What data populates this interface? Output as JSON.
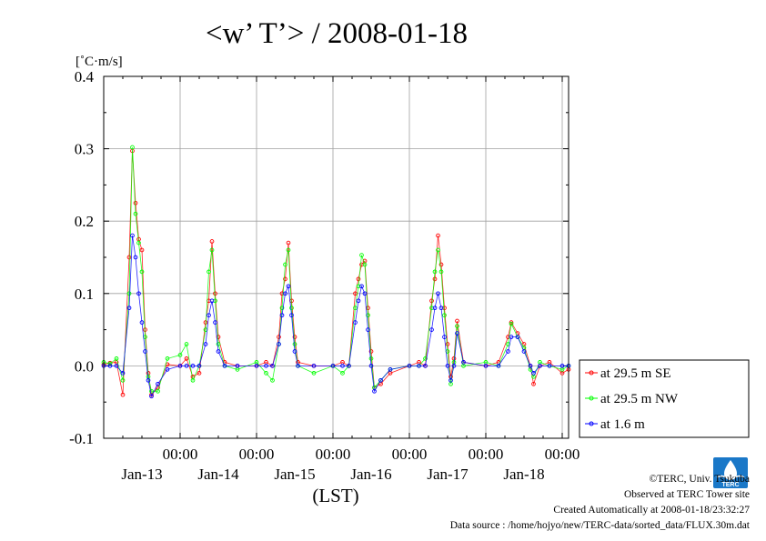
{
  "chart_data": {
    "type": "line",
    "title": "<w’ T’> / 2008-01-18",
    "ylabel": "[˚C·m/s]",
    "xlabel": "(LST)",
    "ylim": [
      -0.1,
      0.4
    ],
    "y_ticks": [
      "0.4",
      "0.3",
      "0.2",
      "0.1",
      "0.0",
      "-0.1"
    ],
    "x_ticks": [
      {
        "time": "00:00",
        "date": "Jan-13"
      },
      {
        "time": "00:00",
        "date": "Jan-14"
      },
      {
        "time": "00:00",
        "date": "Jan-15"
      },
      {
        "time": "00:00",
        "date": "Jan-16"
      },
      {
        "time": "00:00",
        "date": "Jan-17"
      },
      {
        "time": "00:00",
        "date": "Jan-18"
      }
    ],
    "xlim": [
      "2008-01-12 00:00",
      "2008-01-18 02:00"
    ],
    "grid": true,
    "legend_position": "right",
    "series": [
      {
        "name": "at 29.5 m SE",
        "color": "#ff0000",
        "points": [
          [
            "2008-01-12 00:00",
            0.002
          ],
          [
            "2008-01-12 02:00",
            0.004
          ],
          [
            "2008-01-12 04:00",
            0.005
          ],
          [
            "2008-01-12 06:00",
            -0.04
          ],
          [
            "2008-01-12 08:00",
            0.15
          ],
          [
            "2008-01-12 09:00",
            0.297
          ],
          [
            "2008-01-12 10:00",
            0.225
          ],
          [
            "2008-01-12 11:00",
            0.175
          ],
          [
            "2008-01-12 12:00",
            0.16
          ],
          [
            "2008-01-12 13:00",
            0.05
          ],
          [
            "2008-01-12 14:00",
            -0.01
          ],
          [
            "2008-01-12 15:00",
            -0.04
          ],
          [
            "2008-01-12 17:00",
            -0.03
          ],
          [
            "2008-01-12 20:00",
            0.002
          ],
          [
            "2008-01-13 00:00",
            0.0
          ],
          [
            "2008-01-13 02:00",
            0.01
          ],
          [
            "2008-01-13 04:00",
            -0.015
          ],
          [
            "2008-01-13 06:00",
            -0.01
          ],
          [
            "2008-01-13 08:00",
            0.06
          ],
          [
            "2008-01-13 09:00",
            0.09
          ],
          [
            "2008-01-13 10:00",
            0.172
          ],
          [
            "2008-01-13 11:00",
            0.1
          ],
          [
            "2008-01-13 12:00",
            0.04
          ],
          [
            "2008-01-13 14:00",
            0.005
          ],
          [
            "2008-01-13 18:00",
            0.0
          ],
          [
            "2008-01-14 00:00",
            0.0
          ],
          [
            "2008-01-14 03:00",
            0.005
          ],
          [
            "2008-01-14 05:00",
            0.0
          ],
          [
            "2008-01-14 07:00",
            0.04
          ],
          [
            "2008-01-14 08:00",
            0.1
          ],
          [
            "2008-01-14 09:00",
            0.12
          ],
          [
            "2008-01-14 10:00",
            0.17
          ],
          [
            "2008-01-14 11:00",
            0.09
          ],
          [
            "2008-01-14 12:00",
            0.04
          ],
          [
            "2008-01-14 13:00",
            0.005
          ],
          [
            "2008-01-14 18:00",
            0.0
          ],
          [
            "2008-01-15 00:00",
            0.0
          ],
          [
            "2008-01-15 03:00",
            0.005
          ],
          [
            "2008-01-15 05:00",
            0.0
          ],
          [
            "2008-01-15 07:00",
            0.1
          ],
          [
            "2008-01-15 08:00",
            0.12
          ],
          [
            "2008-01-15 09:00",
            0.14
          ],
          [
            "2008-01-15 10:00",
            0.145
          ],
          [
            "2008-01-15 11:00",
            0.08
          ],
          [
            "2008-01-15 12:00",
            0.02
          ],
          [
            "2008-01-15 13:00",
            -0.03
          ],
          [
            "2008-01-15 15:00",
            -0.025
          ],
          [
            "2008-01-15 18:00",
            -0.01
          ],
          [
            "2008-01-16 00:00",
            0.0
          ],
          [
            "2008-01-16 03:00",
            0.005
          ],
          [
            "2008-01-16 05:00",
            0.0
          ],
          [
            "2008-01-16 07:00",
            0.09
          ],
          [
            "2008-01-16 08:00",
            0.12
          ],
          [
            "2008-01-16 09:00",
            0.18
          ],
          [
            "2008-01-16 10:00",
            0.14
          ],
          [
            "2008-01-16 11:00",
            0.08
          ],
          [
            "2008-01-16 12:00",
            0.03
          ],
          [
            "2008-01-16 13:00",
            -0.015
          ],
          [
            "2008-01-16 14:00",
            0.01
          ],
          [
            "2008-01-16 15:00",
            0.062
          ],
          [
            "2008-01-16 17:00",
            0.005
          ],
          [
            "2008-01-17 00:00",
            0.0
          ],
          [
            "2008-01-17 04:00",
            0.005
          ],
          [
            "2008-01-17 07:00",
            0.04
          ],
          [
            "2008-01-17 08:00",
            0.06
          ],
          [
            "2008-01-17 10:00",
            0.045
          ],
          [
            "2008-01-17 12:00",
            0.03
          ],
          [
            "2008-01-17 14:00",
            0.0
          ],
          [
            "2008-01-17 15:00",
            -0.025
          ],
          [
            "2008-01-17 17:00",
            0.0
          ],
          [
            "2008-01-17 20:00",
            0.005
          ],
          [
            "2008-01-18 00:00",
            -0.01
          ],
          [
            "2008-01-18 02:00",
            -0.005
          ]
        ]
      },
      {
        "name": "at 29.5 m NW",
        "color": "#00ff00",
        "points": [
          [
            "2008-01-12 00:00",
            0.005
          ],
          [
            "2008-01-12 02:00",
            0.003
          ],
          [
            "2008-01-12 04:00",
            0.01
          ],
          [
            "2008-01-12 06:00",
            -0.02
          ],
          [
            "2008-01-12 08:00",
            0.1
          ],
          [
            "2008-01-12 09:00",
            0.302
          ],
          [
            "2008-01-12 10:00",
            0.21
          ],
          [
            "2008-01-12 11:00",
            0.17
          ],
          [
            "2008-01-12 12:00",
            0.13
          ],
          [
            "2008-01-12 13:00",
            0.04
          ],
          [
            "2008-01-12 14:00",
            -0.015
          ],
          [
            "2008-01-12 15:00",
            -0.035
          ],
          [
            "2008-01-12 17:00",
            -0.035
          ],
          [
            "2008-01-12 20:00",
            0.01
          ],
          [
            "2008-01-13 00:00",
            0.015
          ],
          [
            "2008-01-13 02:00",
            0.03
          ],
          [
            "2008-01-13 04:00",
            -0.02
          ],
          [
            "2008-01-13 06:00",
            0.0
          ],
          [
            "2008-01-13 08:00",
            0.05
          ],
          [
            "2008-01-13 09:00",
            0.13
          ],
          [
            "2008-01-13 10:00",
            0.16
          ],
          [
            "2008-01-13 11:00",
            0.09
          ],
          [
            "2008-01-13 12:00",
            0.03
          ],
          [
            "2008-01-13 14:00",
            0.0
          ],
          [
            "2008-01-13 18:00",
            -0.005
          ],
          [
            "2008-01-14 00:00",
            0.005
          ],
          [
            "2008-01-14 03:00",
            -0.01
          ],
          [
            "2008-01-14 05:00",
            -0.02
          ],
          [
            "2008-01-14 07:00",
            0.03
          ],
          [
            "2008-01-14 08:00",
            0.08
          ],
          [
            "2008-01-14 09:00",
            0.14
          ],
          [
            "2008-01-14 10:00",
            0.16
          ],
          [
            "2008-01-14 11:00",
            0.08
          ],
          [
            "2008-01-14 12:00",
            0.03
          ],
          [
            "2008-01-14 13:00",
            0.0
          ],
          [
            "2008-01-14 18:00",
            -0.01
          ],
          [
            "2008-01-15 00:00",
            0.0
          ],
          [
            "2008-01-15 03:00",
            -0.01
          ],
          [
            "2008-01-15 05:00",
            0.0
          ],
          [
            "2008-01-15 07:00",
            0.08
          ],
          [
            "2008-01-15 08:00",
            0.11
          ],
          [
            "2008-01-15 09:00",
            0.153
          ],
          [
            "2008-01-15 10:00",
            0.14
          ],
          [
            "2008-01-15 11:00",
            0.07
          ],
          [
            "2008-01-15 12:00",
            0.01
          ],
          [
            "2008-01-15 13:00",
            -0.03
          ],
          [
            "2008-01-15 15:00",
            -0.02
          ],
          [
            "2008-01-15 18:00",
            -0.005
          ],
          [
            "2008-01-16 00:00",
            0.0
          ],
          [
            "2008-01-16 03:00",
            0.0
          ],
          [
            "2008-01-16 05:00",
            0.01
          ],
          [
            "2008-01-16 07:00",
            0.08
          ],
          [
            "2008-01-16 08:00",
            0.13
          ],
          [
            "2008-01-16 09:00",
            0.16
          ],
          [
            "2008-01-16 10:00",
            0.13
          ],
          [
            "2008-01-16 11:00",
            0.07
          ],
          [
            "2008-01-16 12:00",
            0.02
          ],
          [
            "2008-01-16 13:00",
            -0.025
          ],
          [
            "2008-01-16 14:00",
            0.005
          ],
          [
            "2008-01-16 15:00",
            0.055
          ],
          [
            "2008-01-16 17:00",
            0.0
          ],
          [
            "2008-01-17 00:00",
            0.005
          ],
          [
            "2008-01-17 04:00",
            0.0
          ],
          [
            "2008-01-17 07:00",
            0.03
          ],
          [
            "2008-01-17 08:00",
            0.058
          ],
          [
            "2008-01-17 10:00",
            0.04
          ],
          [
            "2008-01-17 12:00",
            0.025
          ],
          [
            "2008-01-17 14:00",
            -0.005
          ],
          [
            "2008-01-17 15:00",
            -0.015
          ],
          [
            "2008-01-17 17:00",
            0.005
          ],
          [
            "2008-01-17 20:00",
            0.0
          ],
          [
            "2008-01-18 00:00",
            -0.005
          ],
          [
            "2008-01-18 02:00",
            0.0
          ]
        ]
      },
      {
        "name": "at 1.6 m",
        "color": "#0000ff",
        "points": [
          [
            "2008-01-12 00:00",
            0.0
          ],
          [
            "2008-01-12 02:00",
            0.0
          ],
          [
            "2008-01-12 04:00",
            0.0
          ],
          [
            "2008-01-12 06:00",
            -0.01
          ],
          [
            "2008-01-12 08:00",
            0.08
          ],
          [
            "2008-01-12 09:00",
            0.18
          ],
          [
            "2008-01-12 10:00",
            0.15
          ],
          [
            "2008-01-12 11:00",
            0.1
          ],
          [
            "2008-01-12 12:00",
            0.06
          ],
          [
            "2008-01-12 13:00",
            0.02
          ],
          [
            "2008-01-12 14:00",
            -0.02
          ],
          [
            "2008-01-12 15:00",
            -0.042
          ],
          [
            "2008-01-12 17:00",
            -0.025
          ],
          [
            "2008-01-12 20:00",
            -0.005
          ],
          [
            "2008-01-13 00:00",
            0.0
          ],
          [
            "2008-01-13 02:00",
            0.0
          ],
          [
            "2008-01-13 04:00",
            0.0
          ],
          [
            "2008-01-13 06:00",
            0.0
          ],
          [
            "2008-01-13 08:00",
            0.03
          ],
          [
            "2008-01-13 09:00",
            0.07
          ],
          [
            "2008-01-13 10:00",
            0.09
          ],
          [
            "2008-01-13 11:00",
            0.06
          ],
          [
            "2008-01-13 12:00",
            0.02
          ],
          [
            "2008-01-13 14:00",
            0.0
          ],
          [
            "2008-01-13 18:00",
            0.0
          ],
          [
            "2008-01-14 00:00",
            0.0
          ],
          [
            "2008-01-14 03:00",
            0.0
          ],
          [
            "2008-01-14 05:00",
            0.0
          ],
          [
            "2008-01-14 07:00",
            0.03
          ],
          [
            "2008-01-14 08:00",
            0.07
          ],
          [
            "2008-01-14 09:00",
            0.1
          ],
          [
            "2008-01-14 10:00",
            0.11
          ],
          [
            "2008-01-14 11:00",
            0.07
          ],
          [
            "2008-01-14 12:00",
            0.02
          ],
          [
            "2008-01-14 13:00",
            0.0
          ],
          [
            "2008-01-14 18:00",
            0.0
          ],
          [
            "2008-01-15 00:00",
            0.0
          ],
          [
            "2008-01-15 03:00",
            0.0
          ],
          [
            "2008-01-15 05:00",
            0.0
          ],
          [
            "2008-01-15 07:00",
            0.06
          ],
          [
            "2008-01-15 08:00",
            0.09
          ],
          [
            "2008-01-15 09:00",
            0.11
          ],
          [
            "2008-01-15 10:00",
            0.1
          ],
          [
            "2008-01-15 11:00",
            0.05
          ],
          [
            "2008-01-15 12:00",
            0.0
          ],
          [
            "2008-01-15 13:00",
            -0.035
          ],
          [
            "2008-01-15 15:00",
            -0.02
          ],
          [
            "2008-01-15 18:00",
            -0.005
          ],
          [
            "2008-01-16 00:00",
            0.0
          ],
          [
            "2008-01-16 03:00",
            0.0
          ],
          [
            "2008-01-16 05:00",
            0.0
          ],
          [
            "2008-01-16 07:00",
            0.05
          ],
          [
            "2008-01-16 08:00",
            0.08
          ],
          [
            "2008-01-16 09:00",
            0.1
          ],
          [
            "2008-01-16 10:00",
            0.08
          ],
          [
            "2008-01-16 11:00",
            0.04
          ],
          [
            "2008-01-16 12:00",
            0.0
          ],
          [
            "2008-01-16 13:00",
            -0.02
          ],
          [
            "2008-01-16 14:00",
            0.0
          ],
          [
            "2008-01-16 15:00",
            0.045
          ],
          [
            "2008-01-16 17:00",
            0.005
          ],
          [
            "2008-01-17 00:00",
            0.0
          ],
          [
            "2008-01-17 04:00",
            0.0
          ],
          [
            "2008-01-17 07:00",
            0.02
          ],
          [
            "2008-01-17 08:00",
            0.04
          ],
          [
            "2008-01-17 10:00",
            0.04
          ],
          [
            "2008-01-17 12:00",
            0.02
          ],
          [
            "2008-01-17 14:00",
            0.0
          ],
          [
            "2008-01-17 15:00",
            -0.01
          ],
          [
            "2008-01-17 17:00",
            0.0
          ],
          [
            "2008-01-17 20:00",
            0.0
          ],
          [
            "2008-01-18 00:00",
            0.0
          ],
          [
            "2008-01-18 02:00",
            0.0
          ]
        ]
      }
    ]
  },
  "credits": {
    "copyright": "©TERC, Univ. Tsukuba",
    "observed": "Observed at TERC Tower site",
    "created": "Created Automatically at 2008-01-18/23:32:27",
    "source": "Data source : /home/hojyo/new/TERC-data/sorted_data/FLUX.30m.dat"
  },
  "logo": {
    "text": "TERC",
    "color": "#1a78c8"
  }
}
